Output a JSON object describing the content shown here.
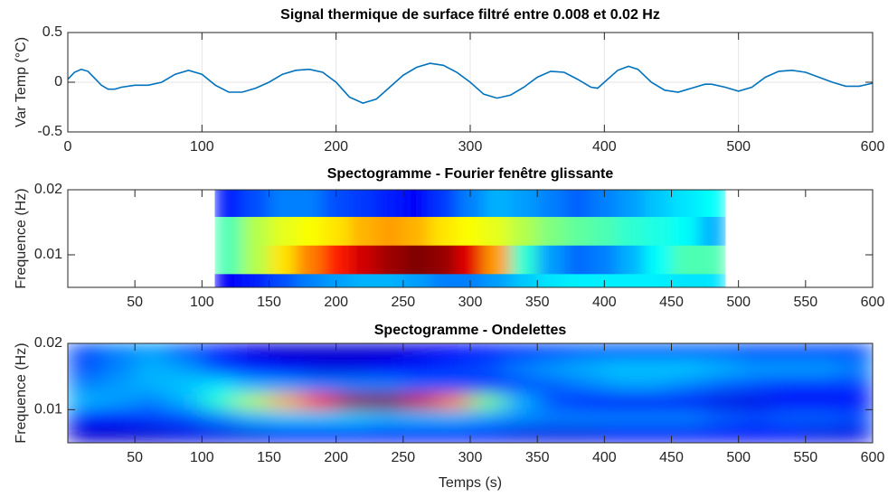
{
  "chart_data": [
    {
      "type": "line",
      "title": "Signal thermique de surface filtré entre 0.008 et 0.02 Hz",
      "ylabel": "Var Temp (°C)",
      "color": "#0072bd",
      "grid": true,
      "xlim": [
        0,
        600
      ],
      "xticks": [
        0,
        100,
        200,
        300,
        400,
        500,
        600
      ],
      "ylim": [
        -0.5,
        0.5
      ],
      "yticks": [
        -0.5,
        0,
        0.5
      ],
      "x": [
        0,
        5,
        10,
        15,
        20,
        25,
        30,
        35,
        40,
        50,
        60,
        70,
        80,
        90,
        100,
        110,
        120,
        130,
        140,
        150,
        160,
        170,
        180,
        190,
        200,
        210,
        220,
        230,
        240,
        250,
        260,
        270,
        280,
        290,
        300,
        310,
        320,
        330,
        340,
        350,
        360,
        370,
        380,
        390,
        395,
        400,
        410,
        418,
        425,
        435,
        445,
        455,
        465,
        475,
        480,
        490,
        500,
        510,
        520,
        530,
        540,
        550,
        560,
        570,
        580,
        590,
        600
      ],
      "values": [
        0.03,
        0.1,
        0.13,
        0.11,
        0.04,
        -0.03,
        -0.07,
        -0.07,
        -0.05,
        -0.03,
        -0.03,
        0.0,
        0.08,
        0.12,
        0.08,
        -0.03,
        -0.1,
        -0.1,
        -0.06,
        0.0,
        0.08,
        0.12,
        0.13,
        0.1,
        0.0,
        -0.15,
        -0.21,
        -0.17,
        -0.05,
        0.07,
        0.15,
        0.19,
        0.17,
        0.1,
        0.0,
        -0.12,
        -0.16,
        -0.13,
        -0.05,
        0.05,
        0.11,
        0.1,
        0.03,
        -0.05,
        -0.06,
        0.0,
        0.12,
        0.16,
        0.13,
        0.0,
        -0.08,
        -0.1,
        -0.06,
        -0.02,
        -0.02,
        -0.05,
        -0.09,
        -0.05,
        0.05,
        0.11,
        0.12,
        0.1,
        0.05,
        0.0,
        -0.04,
        -0.04,
        -0.01
      ]
    },
    {
      "type": "heatmap",
      "title": "Spectogramme - Fourier fenêtre glissante",
      "ylabel": "Frequence (Hz)",
      "colormap": "jet",
      "smooth": "horizontal",
      "xlim": [
        0,
        600
      ],
      "xticks": [
        50,
        100,
        150,
        200,
        250,
        300,
        350,
        400,
        450,
        500,
        550,
        600
      ],
      "ylim": [
        0.005,
        0.02
      ],
      "yticks": [
        0.01,
        0.02
      ],
      "x": [
        120,
        140,
        160,
        180,
        200,
        220,
        240,
        260,
        280,
        300,
        320,
        340,
        360,
        380,
        400,
        420,
        440,
        460,
        480
      ],
      "y": [
        0.00488,
        0.00927,
        0.01367,
        0.01807
      ],
      "values": [
        [
          0.12,
          0.15,
          0.2,
          0.25,
          0.28,
          0.3,
          0.3,
          0.28,
          0.25,
          0.25,
          0.28,
          0.32,
          0.35,
          0.36,
          0.36,
          0.36,
          0.36,
          0.35,
          0.35
        ],
        [
          0.45,
          0.55,
          0.65,
          0.75,
          0.85,
          0.92,
          0.97,
          1.0,
          0.98,
          0.9,
          0.72,
          0.42,
          0.28,
          0.23,
          0.25,
          0.3,
          0.38,
          0.45,
          0.45
        ],
        [
          0.45,
          0.55,
          0.6,
          0.62,
          0.65,
          0.7,
          0.72,
          0.7,
          0.65,
          0.62,
          0.6,
          0.55,
          0.5,
          0.47,
          0.45,
          0.42,
          0.4,
          0.38,
          0.3
        ],
        [
          0.15,
          0.2,
          0.25,
          0.25,
          0.2,
          0.18,
          0.15,
          0.12,
          0.18,
          0.25,
          0.3,
          0.28,
          0.25,
          0.22,
          0.25,
          0.28,
          0.32,
          0.35,
          0.38
        ]
      ]
    },
    {
      "type": "heatmap",
      "title": "Spectogramme - Ondelettes",
      "ylabel": "Frequence (Hz)",
      "xlabel": "Temps (s)",
      "colormap": "jet",
      "smooth": "both",
      "xlim": [
        0,
        600
      ],
      "xticks": [
        50,
        100,
        150,
        200,
        250,
        300,
        350,
        400,
        450,
        500,
        550,
        600
      ],
      "ylim": [
        0.005,
        0.02
      ],
      "yticks": [
        0.01,
        0.02
      ],
      "x": [
        12.5,
        37.5,
        62.5,
        87.5,
        112.5,
        137.5,
        162.5,
        187.5,
        212.5,
        237.5,
        262.5,
        287.5,
        312.5,
        337.5,
        362.5,
        387.5,
        412.5,
        437.5,
        462.5,
        487.5,
        512.5,
        537.5,
        562.5,
        587.5
      ],
      "y": [
        0.00625,
        0.00875,
        0.01125,
        0.01375,
        0.01625,
        0.01875
      ],
      "values": [
        [
          0.08,
          0.08,
          0.08,
          0.1,
          0.1,
          0.1,
          0.12,
          0.12,
          0.12,
          0.12,
          0.12,
          0.12,
          0.12,
          0.1,
          0.1,
          0.1,
          0.12,
          0.12,
          0.12,
          0.12,
          0.12,
          0.12,
          0.1,
          0.1
        ],
        [
          0.15,
          0.15,
          0.18,
          0.2,
          0.25,
          0.3,
          0.32,
          0.32,
          0.32,
          0.3,
          0.3,
          0.3,
          0.28,
          0.26,
          0.25,
          0.25,
          0.25,
          0.25,
          0.25,
          0.22,
          0.2,
          0.22,
          0.22,
          0.2
        ],
        [
          0.3,
          0.28,
          0.25,
          0.3,
          0.42,
          0.55,
          0.7,
          0.85,
          0.98,
          1.0,
          0.92,
          0.75,
          0.5,
          0.3,
          0.2,
          0.15,
          0.12,
          0.12,
          0.12,
          0.1,
          0.1,
          0.12,
          0.12,
          0.12
        ],
        [
          0.25,
          0.28,
          0.3,
          0.32,
          0.35,
          0.3,
          0.28,
          0.25,
          0.25,
          0.25,
          0.22,
          0.2,
          0.18,
          0.2,
          0.22,
          0.25,
          0.28,
          0.28,
          0.25,
          0.22,
          0.2,
          0.18,
          0.18,
          0.18
        ],
        [
          0.2,
          0.25,
          0.3,
          0.28,
          0.2,
          0.15,
          0.12,
          0.1,
          0.1,
          0.12,
          0.15,
          0.18,
          0.2,
          0.25,
          0.28,
          0.3,
          0.32,
          0.32,
          0.32,
          0.3,
          0.28,
          0.28,
          0.28,
          0.25
        ],
        [
          0.2,
          0.25,
          0.28,
          0.22,
          0.15,
          0.1,
          0.08,
          0.08,
          0.08,
          0.08,
          0.1,
          0.12,
          0.15,
          0.18,
          0.2,
          0.22,
          0.22,
          0.22,
          0.22,
          0.22,
          0.2,
          0.2,
          0.2,
          0.2
        ]
      ]
    }
  ]
}
